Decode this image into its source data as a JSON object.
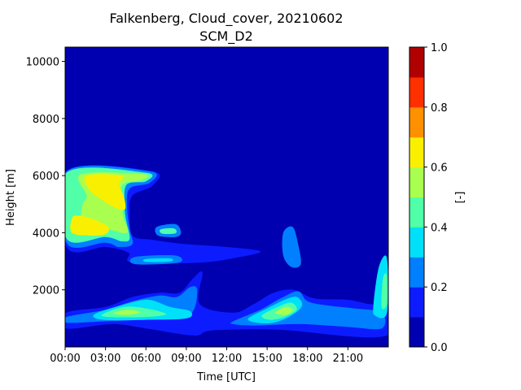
{
  "chart_data": {
    "type": "heatmap",
    "title": "Falkenberg, Cloud_cover, 20210602",
    "subtitle": "SCM_D2",
    "xlabel": "Time [UTC]",
    "ylabel": "Height [m]",
    "xlim": [
      0,
      24
    ],
    "ylim": [
      0,
      10500
    ],
    "x_ticks": [
      {
        "value": 0,
        "label": "00:00"
      },
      {
        "value": 3,
        "label": "03:00"
      },
      {
        "value": 6,
        "label": "06:00"
      },
      {
        "value": 9,
        "label": "09:00"
      },
      {
        "value": 12,
        "label": "12:00"
      },
      {
        "value": 15,
        "label": "15:00"
      },
      {
        "value": 18,
        "label": "18:00"
      },
      {
        "value": 21,
        "label": "21:00"
      }
    ],
    "y_ticks": [
      {
        "value": 2000,
        "label": "2000"
      },
      {
        "value": 4000,
        "label": "4000"
      },
      {
        "value": 6000,
        "label": "6000"
      },
      {
        "value": 8000,
        "label": "8000"
      },
      {
        "value": 10000,
        "label": "10000"
      }
    ],
    "colorbar": {
      "label": "[-]",
      "range": [
        0,
        1
      ],
      "levels": [
        0.0,
        0.1,
        0.2,
        0.3,
        0.4,
        0.5,
        0.6,
        0.7,
        0.8,
        0.9,
        1.0
      ],
      "colors": [
        "#0000b0",
        "#0c1cff",
        "#0080ff",
        "#00e0f8",
        "#50ffa8",
        "#a8ff50",
        "#f8f000",
        "#ff9000",
        "#ff3000",
        "#b00000"
      ],
      "ticks": [
        {
          "value": 0.0,
          "label": "0.0"
        },
        {
          "value": 0.2,
          "label": "0.2"
        },
        {
          "value": 0.4,
          "label": "0.4"
        },
        {
          "value": 0.6,
          "label": "0.6"
        },
        {
          "value": 0.8,
          "label": "0.8"
        },
        {
          "value": 1.0,
          "label": "1.0"
        }
      ]
    },
    "cloud_regions": [
      {
        "name": "upper-deck-edge",
        "level": 1,
        "points": [
          [
            0.1,
            6150
          ],
          [
            6.5,
            6150
          ],
          [
            6.5,
            5650
          ],
          [
            5.0,
            5300
          ],
          [
            4.8,
            4700
          ],
          [
            5.0,
            3900
          ],
          [
            6.5,
            3750
          ],
          [
            9.0,
            3600
          ],
          [
            12.0,
            3500
          ],
          [
            14.5,
            3350
          ],
          [
            13.0,
            3150
          ],
          [
            10.0,
            2950
          ],
          [
            5.0,
            2950
          ],
          [
            4.7,
            3300
          ],
          [
            3.0,
            3500
          ],
          [
            0.1,
            3500
          ]
        ]
      },
      {
        "name": "upper-deck-light",
        "level": 2,
        "points": [
          [
            0.1,
            6150
          ],
          [
            6.3,
            6150
          ],
          [
            6.3,
            5750
          ],
          [
            4.8,
            5550
          ],
          [
            4.6,
            4900
          ],
          [
            4.8,
            4100
          ],
          [
            5.0,
            3600
          ],
          [
            4.0,
            3500
          ],
          [
            3.0,
            3650
          ],
          [
            0.1,
            3650
          ]
        ]
      },
      {
        "name": "upper-deck-mid",
        "level": 4,
        "points": [
          [
            0.1,
            6100
          ],
          [
            6.0,
            6100
          ],
          [
            6.0,
            5800
          ],
          [
            4.6,
            5700
          ],
          [
            4.4,
            5100
          ],
          [
            4.5,
            4500
          ],
          [
            4.8,
            3800
          ],
          [
            4.2,
            3700
          ],
          [
            3.0,
            3850
          ],
          [
            0.1,
            3800
          ]
        ]
      },
      {
        "name": "upper-deck-core",
        "level": 5,
        "points": [
          [
            1.2,
            6050
          ],
          [
            5.8,
            6050
          ],
          [
            5.8,
            5850
          ],
          [
            4.3,
            5700
          ],
          [
            4.2,
            5200
          ],
          [
            4.3,
            4600
          ],
          [
            4.6,
            4000
          ],
          [
            3.0,
            4150
          ],
          [
            2.0,
            4200
          ],
          [
            1.2,
            4400
          ],
          [
            1.3,
            5000
          ],
          [
            1.6,
            5300
          ]
        ]
      },
      {
        "name": "upper-deck-peak-a",
        "level": 6,
        "points": [
          [
            1.6,
            6000
          ],
          [
            4.2,
            6000
          ],
          [
            4.0,
            5700
          ],
          [
            4.4,
            5200
          ],
          [
            4.4,
            4800
          ],
          [
            3.4,
            4950
          ],
          [
            2.6,
            5200
          ],
          [
            1.8,
            5500
          ]
        ]
      },
      {
        "name": "upper-deck-peak-b",
        "level": 6,
        "points": [
          [
            0.5,
            4500
          ],
          [
            1.0,
            4600
          ],
          [
            2.2,
            4450
          ],
          [
            3.2,
            4200
          ],
          [
            3.0,
            3950
          ],
          [
            1.8,
            3900
          ],
          [
            0.5,
            4000
          ]
        ]
      },
      {
        "name": "patch-0730-4000m",
        "level": 2,
        "points": [
          [
            6.8,
            4200
          ],
          [
            8.2,
            4300
          ],
          [
            8.6,
            4000
          ],
          [
            8.2,
            3850
          ],
          [
            6.9,
            3900
          ]
        ]
      },
      {
        "name": "patch-0730-4000m-core",
        "level": 4,
        "points": [
          [
            7.1,
            4120
          ],
          [
            8.1,
            4150
          ],
          [
            8.2,
            3980
          ],
          [
            7.2,
            3970
          ]
        ]
      },
      {
        "name": "patch-0630-3000m",
        "level": 2,
        "points": [
          [
            5.2,
            3150
          ],
          [
            8.2,
            3200
          ],
          [
            8.4,
            2950
          ],
          [
            5.2,
            2900
          ]
        ]
      },
      {
        "name": "patch-0630-3000m-core",
        "level": 3,
        "points": [
          [
            6.0,
            3080
          ],
          [
            7.8,
            3100
          ],
          [
            7.8,
            2990
          ],
          [
            6.0,
            2980
          ]
        ]
      },
      {
        "name": "lower-deck-edge",
        "level": 1,
        "points": [
          [
            0.1,
            1200
          ],
          [
            3.0,
            1400
          ],
          [
            5.0,
            1750
          ],
          [
            7.0,
            1900
          ],
          [
            8.5,
            1900
          ],
          [
            9.5,
            2400
          ],
          [
            10.2,
            2600
          ],
          [
            10.0,
            1500
          ],
          [
            12.5,
            1200
          ],
          [
            14.0,
            1500
          ],
          [
            15.5,
            1900
          ],
          [
            17.0,
            2000
          ],
          [
            18.5,
            1700
          ],
          [
            21.0,
            1650
          ],
          [
            23.0,
            1500
          ],
          [
            23.9,
            1900
          ],
          [
            23.9,
            400
          ],
          [
            16.0,
            600
          ],
          [
            12.0,
            600
          ],
          [
            10.5,
            550
          ],
          [
            9.5,
            400
          ],
          [
            6.0,
            650
          ],
          [
            3.5,
            800
          ],
          [
            0.1,
            650
          ]
        ]
      },
      {
        "name": "lower-deck-light",
        "level": 2,
        "points": [
          [
            0.1,
            1050
          ],
          [
            3.0,
            1300
          ],
          [
            5.0,
            1600
          ],
          [
            7.0,
            1800
          ],
          [
            8.3,
            1750
          ],
          [
            9.3,
            2100
          ],
          [
            9.8,
            2000
          ],
          [
            9.4,
            1200
          ],
          [
            7.5,
            1000
          ],
          [
            3.0,
            900
          ],
          [
            0.1,
            850
          ]
        ]
      },
      {
        "name": "lower-deck-mid",
        "level": 3,
        "points": [
          [
            2.2,
            1150
          ],
          [
            4.5,
            1500
          ],
          [
            6.2,
            1650
          ],
          [
            7.8,
            1400
          ],
          [
            9.3,
            1250
          ],
          [
            9.0,
            1000
          ],
          [
            6.0,
            950
          ],
          [
            2.8,
            950
          ]
        ]
      },
      {
        "name": "lower-deck-core",
        "level": 4,
        "points": [
          [
            2.8,
            1150
          ],
          [
            4.4,
            1400
          ],
          [
            6.0,
            1350
          ],
          [
            7.5,
            1150
          ],
          [
            6.0,
            1050
          ],
          [
            3.2,
            1050
          ]
        ]
      },
      {
        "name": "lower-deck-peak",
        "level": 5,
        "points": [
          [
            3.6,
            1180
          ],
          [
            4.6,
            1300
          ],
          [
            5.6,
            1220
          ],
          [
            4.6,
            1120
          ]
        ]
      },
      {
        "name": "afternoon-edge",
        "level": 2,
        "points": [
          [
            12.5,
            900
          ],
          [
            14.5,
            1300
          ],
          [
            16.0,
            1700
          ],
          [
            17.3,
            1950
          ],
          [
            18.0,
            1600
          ],
          [
            19.5,
            1450
          ],
          [
            21.5,
            1350
          ],
          [
            23.5,
            1200
          ],
          [
            23.5,
            650
          ],
          [
            21.0,
            700
          ],
          [
            17.5,
            800
          ],
          [
            14.0,
            750
          ],
          [
            12.5,
            800
          ]
        ]
      },
      {
        "name": "afternoon-mid",
        "level": 3,
        "points": [
          [
            13.6,
            1000
          ],
          [
            15.0,
            1350
          ],
          [
            16.3,
            1650
          ],
          [
            17.2,
            1750
          ],
          [
            17.6,
            1450
          ],
          [
            16.8,
            1100
          ],
          [
            15.5,
            850
          ],
          [
            14.2,
            850
          ]
        ]
      },
      {
        "name": "afternoon-core",
        "level": 4,
        "points": [
          [
            14.6,
            1100
          ],
          [
            15.8,
            1400
          ],
          [
            16.8,
            1550
          ],
          [
            17.2,
            1300
          ],
          [
            16.3,
            1050
          ],
          [
            15.2,
            950
          ]
        ]
      },
      {
        "name": "afternoon-peak",
        "level": 5,
        "points": [
          [
            15.6,
            1200
          ],
          [
            16.4,
            1400
          ],
          [
            16.9,
            1300
          ],
          [
            16.4,
            1120
          ]
        ]
      },
      {
        "name": "column-1600-3500m",
        "level": 2,
        "points": [
          [
            16.2,
            4000
          ],
          [
            16.9,
            4200
          ],
          [
            17.3,
            3600
          ],
          [
            17.5,
            2900
          ],
          [
            16.8,
            2800
          ],
          [
            16.2,
            3200
          ]
        ]
      },
      {
        "name": "column-2330-1500m",
        "level": 3,
        "points": [
          [
            23.3,
            2800
          ],
          [
            23.9,
            3100
          ],
          [
            23.9,
            1200
          ],
          [
            23.0,
            1100
          ],
          [
            22.9,
            1500
          ]
        ]
      },
      {
        "name": "column-2330-1500m-core",
        "level": 4,
        "points": [
          [
            23.6,
            2400
          ],
          [
            23.9,
            2500
          ],
          [
            23.9,
            1500
          ],
          [
            23.5,
            1400
          ]
        ]
      }
    ]
  }
}
